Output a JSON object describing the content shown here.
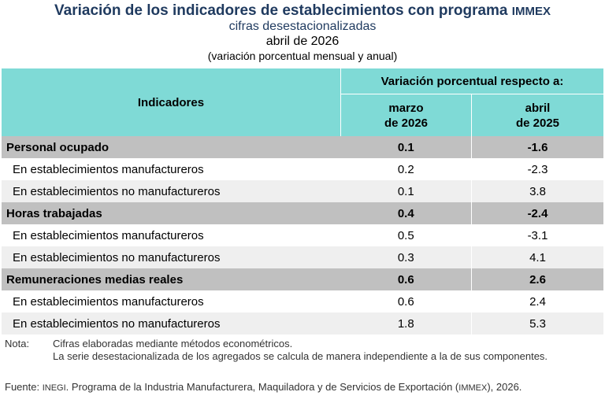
{
  "header": {
    "title_main": "Variación de los indicadores de establecimientos con programa",
    "title_tag": "IMMEX",
    "subtitle": "cifras desestacionalizadas",
    "period": "abril de 2026",
    "units": "(variación porcentual mensual y anual)"
  },
  "table": {
    "col_indicators": "Indicadores",
    "col_variation": "Variación porcentual respecto a:",
    "col_month": "marzo\nde 2026",
    "col_year": "abril\nde 2025",
    "rows": [
      {
        "type": "group",
        "label": "Personal ocupado",
        "m": "0.1",
        "a": "-1.6"
      },
      {
        "type": "sub1",
        "label": "En establecimientos manufactureros",
        "m": "0.2",
        "a": "-2.3"
      },
      {
        "type": "sub2",
        "label": "En establecimientos no manufactureros",
        "m": "0.1",
        "a": "3.8"
      },
      {
        "type": "group",
        "label": "Horas trabajadas",
        "m": "0.4",
        "a": "-2.4"
      },
      {
        "type": "sub1",
        "label": "En establecimientos manufactureros",
        "m": "0.5",
        "a": "-3.1"
      },
      {
        "type": "sub2",
        "label": "En establecimientos no manufactureros",
        "m": "0.3",
        "a": "4.1"
      },
      {
        "type": "group",
        "label": "Remuneraciones medias reales",
        "m": "0.6",
        "a": "2.6"
      },
      {
        "type": "sub1",
        "label": "En establecimientos manufactureros",
        "m": "0.6",
        "a": "2.4"
      },
      {
        "type": "sub2",
        "label": "En establecimientos no manufactureros",
        "m": "1.8",
        "a": "5.3"
      }
    ]
  },
  "notes": {
    "label": "Nota:",
    "line1": "Cifras elaboradas mediante métodos econométricos.",
    "line2": "La serie desestacionalizada de los agregados se calcula de manera independiente a la de sus componentes."
  },
  "source": {
    "label": "Fuente:",
    "org": "INEGI",
    "text": ". Programa de la Industria Manufacturera, Maquiladora y de Servicios de Exportación (",
    "tag": "IMMEX",
    "end": "), 2026."
  }
}
